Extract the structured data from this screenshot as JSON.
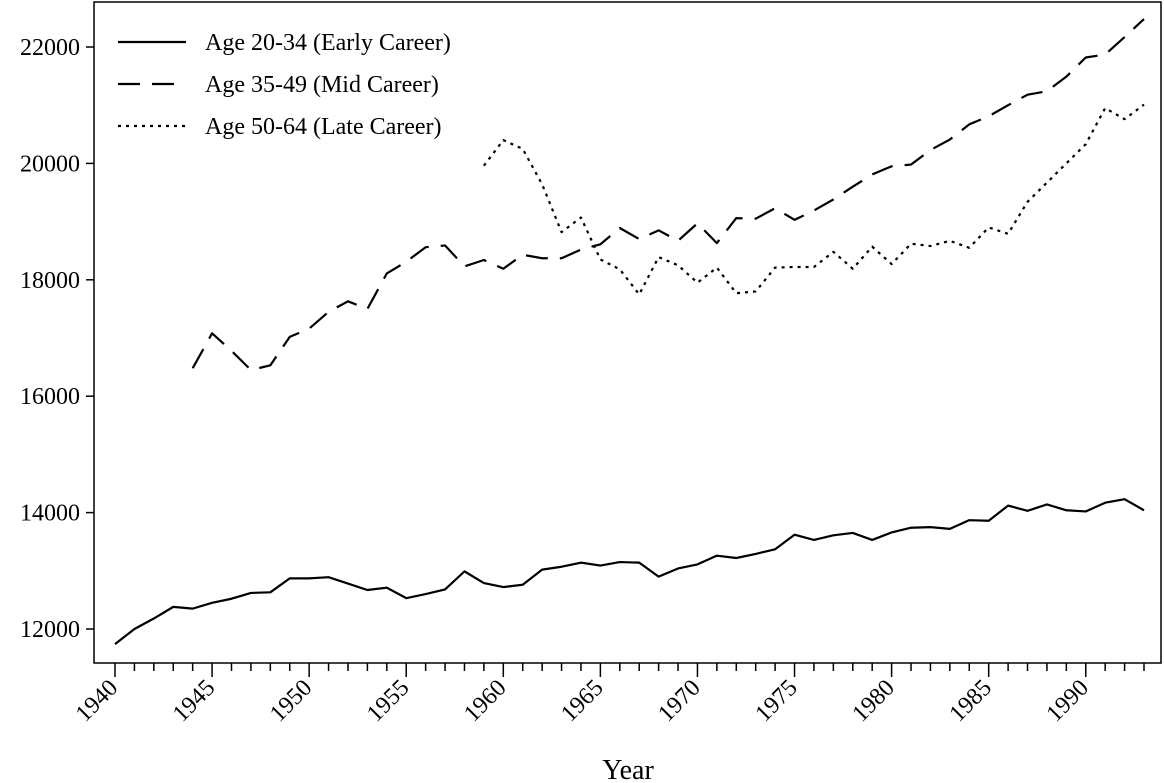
{
  "chart_data": {
    "type": "line",
    "title": "",
    "xlabel": "Year",
    "ylabel": "",
    "xlim": [
      1940,
      1993
    ],
    "ylim": [
      11700,
      22800
    ],
    "x_ticks": [
      1940,
      1945,
      1950,
      1955,
      1960,
      1965,
      1970,
      1975,
      1980,
      1985,
      1990
    ],
    "y_ticks": [
      12000,
      14000,
      16000,
      18000,
      20000,
      22000
    ],
    "grid": false,
    "legend_position": "top-left",
    "series": [
      {
        "name": "Age 20-34 (Early Career)",
        "style": "solid",
        "x": [
          1940,
          1941,
          1942,
          1943,
          1944,
          1945,
          1946,
          1947,
          1948,
          1949,
          1950,
          1951,
          1952,
          1953,
          1954,
          1955,
          1956,
          1957,
          1958,
          1959,
          1960,
          1961,
          1962,
          1963,
          1964,
          1965,
          1966,
          1967,
          1968,
          1969,
          1970,
          1971,
          1972,
          1973,
          1974,
          1975,
          1976,
          1977,
          1978,
          1979,
          1980,
          1981,
          1982,
          1983,
          1984,
          1985,
          1986,
          1987,
          1988,
          1989,
          1990,
          1991,
          1992,
          1993
        ],
        "values": [
          11740,
          12000,
          12180,
          12380,
          12350,
          12450,
          12520,
          12620,
          12630,
          12870,
          12870,
          12890,
          12780,
          12670,
          12710,
          12530,
          12600,
          12680,
          12990,
          12790,
          12720,
          12760,
          13020,
          13070,
          13140,
          13090,
          13150,
          13140,
          12900,
          13040,
          13110,
          13260,
          13220,
          13290,
          13370,
          13620,
          13530,
          13610,
          13650,
          13530,
          13660,
          13740,
          13750,
          13720,
          13870,
          13860,
          14120,
          14030,
          14140,
          14040,
          14020,
          14170,
          14230,
          14040
        ]
      },
      {
        "name": "Age 35-49 (Mid Career)",
        "style": "dashed",
        "x": [
          1944,
          1945,
          1946,
          1947,
          1948,
          1949,
          1950,
          1951,
          1952,
          1953,
          1954,
          1955,
          1956,
          1957,
          1958,
          1959,
          1960,
          1961,
          1962,
          1963,
          1964,
          1965,
          1966,
          1967,
          1968,
          1969,
          1970,
          1971,
          1972,
          1973,
          1974,
          1975,
          1976,
          1977,
          1978,
          1979,
          1980,
          1981,
          1982,
          1983,
          1984,
          1985,
          1986,
          1987,
          1988,
          1989,
          1990,
          1991,
          1992,
          1993
        ],
        "values": [
          16480,
          17080,
          16780,
          16450,
          16530,
          17020,
          17160,
          17450,
          17630,
          17500,
          18110,
          18310,
          18560,
          18590,
          18230,
          18340,
          18190,
          18430,
          18370,
          18370,
          18520,
          18610,
          18890,
          18700,
          18850,
          18670,
          18970,
          18630,
          19060,
          19050,
          19230,
          19030,
          19190,
          19380,
          19600,
          19810,
          19950,
          19980,
          20230,
          20410,
          20670,
          20810,
          21000,
          21180,
          21240,
          21490,
          21820,
          21870,
          22170,
          22480
        ]
      },
      {
        "name": "Age 50-64 (Late Career)",
        "style": "dotted",
        "x": [
          1959,
          1960,
          1961,
          1962,
          1963,
          1964,
          1965,
          1966,
          1967,
          1968,
          1969,
          1970,
          1971,
          1972,
          1973,
          1974,
          1975,
          1976,
          1977,
          1978,
          1979,
          1980,
          1981,
          1982,
          1983,
          1984,
          1985,
          1986,
          1987,
          1988,
          1989,
          1990,
          1991,
          1992,
          1993
        ],
        "values": [
          19960,
          20400,
          20250,
          19640,
          18820,
          19070,
          18350,
          18180,
          17750,
          18390,
          18250,
          17950,
          18210,
          17770,
          17800,
          18210,
          18220,
          18220,
          18480,
          18190,
          18570,
          18270,
          18620,
          18580,
          18670,
          18550,
          18900,
          18790,
          19340,
          19670,
          20000,
          20330,
          20950,
          20760,
          21010
        ]
      }
    ]
  }
}
